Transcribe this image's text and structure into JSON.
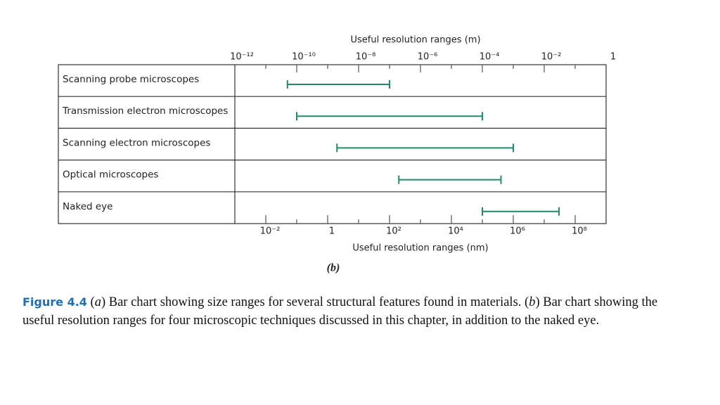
{
  "chart_data": {
    "type": "range",
    "x2label": "Useful resolution ranges (m)",
    "xlabel": "Useful resolution ranges (nm)",
    "subtitle": "(b)",
    "categories": [
      "Scanning probe microscopes",
      "Transmission electron microscopes",
      "Scanning electron microscopes",
      "Optical microscopes",
      "Naked eye"
    ],
    "starts": [
      0.05,
      0.1,
      2,
      200,
      100000
    ],
    "ends": [
      100,
      100000,
      1000000,
      400000,
      30000000
    ],
    "color": "#1e8c6a",
    "xscale": "log",
    "xlim": [
      0.001,
      1000000000
    ],
    "xticks": [
      {
        "value": 0.01,
        "label": "10⁻²"
      },
      1,
      {
        "value": 100,
        "label": "10²"
      },
      {
        "value": 10000,
        "label": "10⁴"
      },
      {
        "value": 1000000,
        "label": "10⁶"
      },
      {
        "value": 100000000,
        "label": "10⁸"
      }
    ],
    "xminor": [
      0.1,
      10,
      1000,
      100000,
      10000000
    ],
    "x2lim": [
      1e-12,
      1
    ],
    "x2ticks": [
      {
        "value": 1e-12,
        "label": "10⁻¹²"
      },
      {
        "value": 1e-10,
        "label": "10⁻¹⁰"
      },
      {
        "value": 1e-08,
        "label": "10⁻⁸"
      },
      {
        "value": 1e-06,
        "label": "10⁻⁶"
      },
      {
        "value": 0.0001,
        "label": "10⁻⁴"
      },
      {
        "value": 0.01,
        "label": "10⁻²"
      },
      1
    ],
    "x2minor": [
      1e-11,
      1e-09,
      1e-07,
      1e-05,
      0.001,
      0.1
    ]
  },
  "caption": {
    "figure": "Figure 4.4",
    "parts": [
      "(",
      "a",
      ") Bar chart showing size ranges for several structural features found in materials. (",
      "b",
      ") Bar chart showing the useful resolution ranges for four microscopic techniques discussed in this chapter, in addition to the naked eye."
    ]
  }
}
